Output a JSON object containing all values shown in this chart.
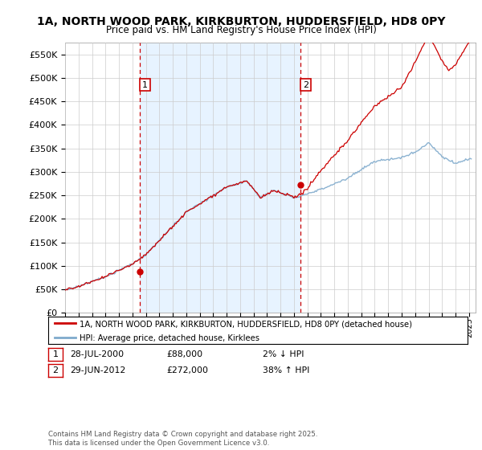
{
  "title": "1A, NORTH WOOD PARK, KIRKBURTON, HUDDERSFIELD, HD8 0PY",
  "subtitle": "Price paid vs. HM Land Registry's House Price Index (HPI)",
  "ylabel_ticks": [
    "£0",
    "£50K",
    "£100K",
    "£150K",
    "£200K",
    "£250K",
    "£300K",
    "£350K",
    "£400K",
    "£450K",
    "£500K",
    "£550K"
  ],
  "ytick_values": [
    0,
    50000,
    100000,
    150000,
    200000,
    250000,
    300000,
    350000,
    400000,
    450000,
    500000,
    550000
  ],
  "ylim": [
    0,
    575000
  ],
  "xlim_start": 1995.3,
  "xlim_end": 2025.5,
  "sale1_x": 2000.57,
  "sale1_y": 88000,
  "sale2_x": 2012.49,
  "sale2_y": 272000,
  "vline1_x": 2000.57,
  "vline2_x": 2012.49,
  "legend_line1": "1A, NORTH WOOD PARK, KIRKBURTON, HUDDERSFIELD, HD8 0PY (detached house)",
  "legend_line2": "HPI: Average price, detached house, Kirklees",
  "ann1_date": "28-JUL-2000",
  "ann1_price": "£88,000",
  "ann1_hpi": "2% ↓ HPI",
  "ann2_date": "29-JUN-2012",
  "ann2_price": "£272,000",
  "ann2_hpi": "38% ↑ HPI",
  "footnote": "Contains HM Land Registry data © Crown copyright and database right 2025.\nThis data is licensed under the Open Government Licence v3.0.",
  "color_red": "#cc0000",
  "color_blue": "#7faacc",
  "shade_color": "#ddeeff",
  "background_color": "#ffffff",
  "grid_color": "#cccccc"
}
